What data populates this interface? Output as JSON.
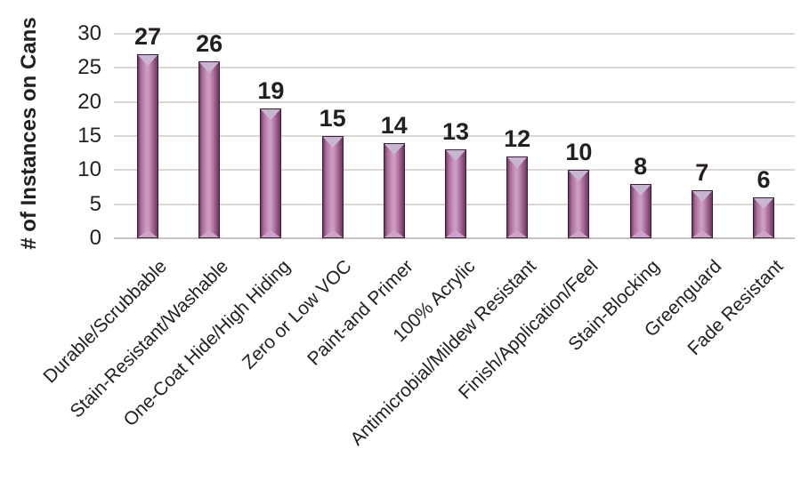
{
  "chart_data": {
    "type": "bar",
    "categories": [
      "Durable/Scrubbable",
      "Stain-Resistant/Washable",
      "One-Coat Hide/High Hiding",
      "Zero or Low VOC",
      "Paint-and Primer",
      "100% Acrylic",
      "Antimicrobial/Mildew Resistant",
      "Finish/Application/Feel",
      "Stain-Blocking",
      "Greenguard",
      "Fade Resistant"
    ],
    "values": [
      27,
      26,
      19,
      15,
      14,
      13,
      12,
      10,
      8,
      7,
      6
    ],
    "title": "",
    "xlabel": "",
    "ylabel": "# of Instances on Cans",
    "ylim": [
      0,
      30
    ],
    "yticks": [
      30,
      25,
      20,
      15,
      10,
      5,
      0
    ],
    "grid": true,
    "legend": "none",
    "data_labels": true,
    "colors": {
      "bar_edge_dark": "#6b3560",
      "bar_mid": "#a96b99",
      "bar_center_light": "#cb9cc1",
      "bar_border": "#3c1c36",
      "bevel_top": "#c6b6d0",
      "bevel_bottom": "#cfa3c8",
      "gridline": "#dcd7d7",
      "axis_line": "#c9c2c2",
      "text": "#231f20"
    }
  }
}
